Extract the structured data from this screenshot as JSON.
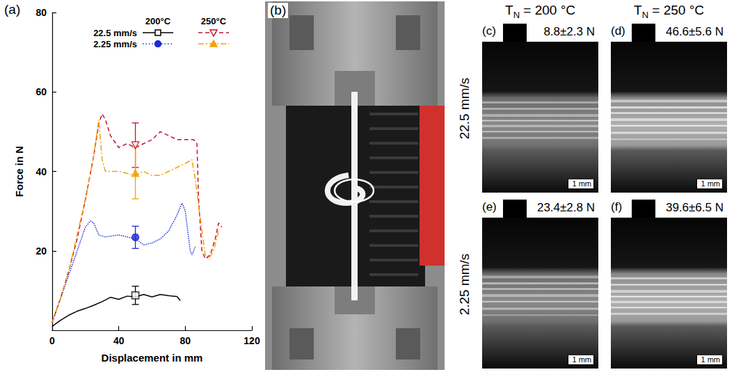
{
  "chart_data": {
    "type": "line",
    "panel_label": "(a)",
    "x_label": "Displacement in mm",
    "y_label": "Force in N",
    "xlim": [
      0,
      120
    ],
    "xticks": [
      0,
      40,
      80,
      120
    ],
    "ylim": [
      0,
      80
    ],
    "yticks": [
      20,
      40,
      60,
      80
    ],
    "grid": false,
    "legend": "upper right",
    "series": [
      {
        "temperature": "200°C",
        "speed": "22.5 mm/s",
        "color": "#000000",
        "line_style": "solid",
        "marker": "open_square",
        "x": [
          0,
          5,
          10,
          15,
          20,
          25,
          30,
          35,
          40,
          45,
          50,
          55,
          60,
          65,
          70,
          75,
          77
        ],
        "values": [
          1,
          2.5,
          3.8,
          4.8,
          5.5,
          6.3,
          7.2,
          8.3,
          7.8,
          8.6,
          8.4,
          9,
          8.4,
          9,
          8.7,
          8.5,
          7.5
        ],
        "error_bar": {
          "x": 50,
          "value": 8.8,
          "error": 2.3
        }
      },
      {
        "temperature": "200°C",
        "speed": "2.25 mm/s",
        "color": "#1f2ad6",
        "line_style": "dotted",
        "marker": "filled_circle",
        "x": [
          0,
          5,
          10,
          15,
          20,
          23,
          25,
          28,
          32,
          40,
          50,
          55,
          60,
          65,
          70,
          75,
          78,
          80,
          83,
          84,
          86
        ],
        "values": [
          2,
          8,
          14,
          20,
          26,
          27.5,
          27,
          24,
          23.5,
          24,
          23,
          21.5,
          22,
          23,
          25,
          29,
          32,
          30,
          20,
          19,
          21
        ],
        "error_bar": {
          "x": 50,
          "value": 23.4,
          "error": 2.8
        }
      },
      {
        "temperature": "250°C",
        "speed": "22.5 mm/s",
        "color": "#c8102e",
        "line_style": "dashed",
        "marker": "open_triangle_down",
        "x": [
          0,
          5,
          10,
          15,
          20,
          25,
          28,
          30,
          32,
          35,
          40,
          45,
          50,
          55,
          60,
          65,
          70,
          75,
          80,
          85,
          87,
          88,
          90,
          92,
          95,
          98,
          100,
          102
        ],
        "values": [
          2,
          8,
          15,
          23,
          33,
          44,
          52,
          54.5,
          53,
          49,
          46,
          47,
          46,
          47,
          48,
          50,
          49,
          48,
          48,
          48,
          47,
          33,
          20,
          18,
          19,
          23,
          27,
          26
        ],
        "error_bar": {
          "x": 50,
          "value": 46.6,
          "error": 5.6
        }
      },
      {
        "temperature": "250°C",
        "speed": "2.25 mm/s",
        "color": "#f5a000",
        "line_style": "dashdot",
        "marker": "filled_triangle",
        "x": [
          0,
          5,
          10,
          15,
          20,
          25,
          27,
          28,
          30,
          32,
          40,
          50,
          55,
          60,
          65,
          70,
          75,
          80,
          84,
          86,
          90,
          92,
          94,
          97,
          100
        ],
        "values": [
          2,
          8,
          15,
          24,
          33,
          44,
          50,
          53,
          43,
          40,
          40,
          39,
          40,
          39,
          39,
          40,
          41,
          42,
          43,
          38,
          25,
          19,
          18,
          20,
          25
        ],
        "error_bar": {
          "x": 50,
          "value": 39.6,
          "error": 6.5
        }
      }
    ]
  },
  "photo": {
    "label": "(b)"
  },
  "micrographs": {
    "column_heads": [
      {
        "symbol": "T",
        "subscript": "N",
        "text": " = 200 °C"
      },
      {
        "symbol": "T",
        "subscript": "N",
        "text": " = 250 °C"
      }
    ],
    "row_heads": [
      "22.5 mm/s",
      "2.25 mm/s"
    ],
    "images": [
      [
        {
          "label": "(c)",
          "force": "8.8±2.3 N",
          "scale_bar": "1 mm"
        },
        {
          "label": "(d)",
          "force": "46.6±5.6 N",
          "scale_bar": "1 mm"
        }
      ],
      [
        {
          "label": "(e)",
          "force": "23.4±2.8 N",
          "scale_bar": "1 mm"
        },
        {
          "label": "(f)",
          "force": "39.6±6.5 N",
          "scale_bar": "1 mm"
        }
      ]
    ]
  }
}
